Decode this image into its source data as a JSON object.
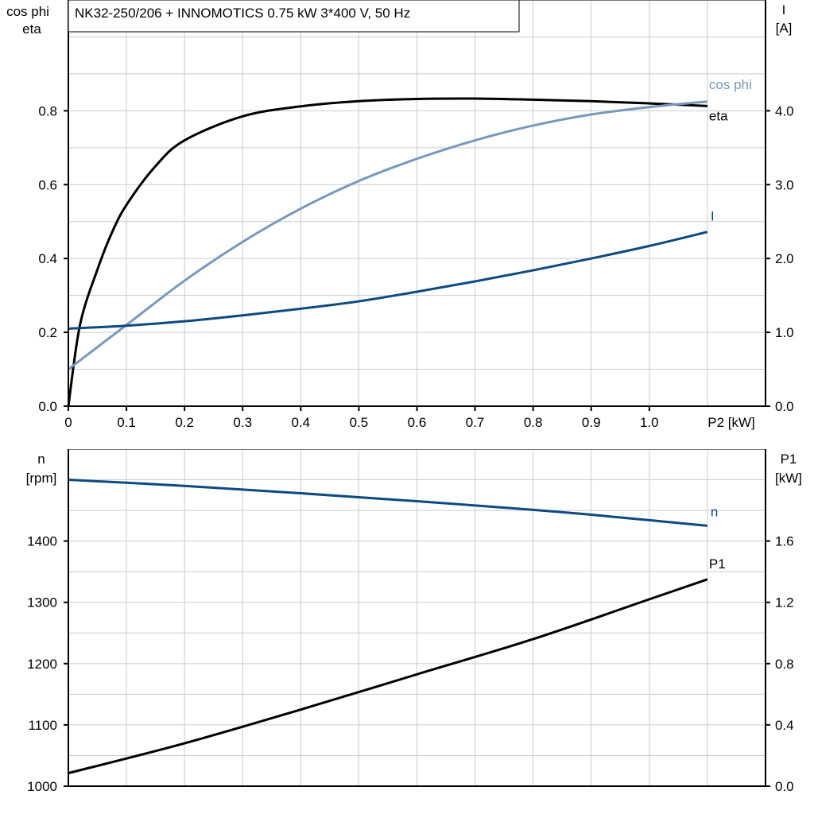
{
  "title": "NK32-250/206 + INNOMOTICS   0.75 kW   3*400 V, 50 Hz",
  "colors": {
    "eta": "#000000",
    "cos_phi": "#7799bb",
    "I": "#0d4a80",
    "n": "#0d4a80",
    "P1": "#000000",
    "grid": "#cccccc"
  },
  "chart_data": [
    {
      "type": "line",
      "xlabel": "P2 [kW]",
      "ylabel_left": [
        "cos phi",
        "eta"
      ],
      "ylabel_right": [
        "I",
        "[A]"
      ],
      "xlim": [
        0,
        1.2
      ],
      "ylim_left": [
        0,
        1.1
      ],
      "ylim_right": [
        0,
        5.5
      ],
      "grid": true,
      "x_ticks": [
        "0",
        "0.1",
        "0.2",
        "0.3",
        "0.4",
        "0.5",
        "0.6",
        "0.7",
        "0.8",
        "0.9",
        "1.0"
      ],
      "y_ticks_left": [
        "0.0",
        "0.2",
        "0.4",
        "0.6",
        "0.8"
      ],
      "y_ticks_right": [
        "0.0",
        "1.0",
        "2.0",
        "3.0",
        "4.0"
      ],
      "series": [
        {
          "name": "eta",
          "axis": "left",
          "x": [
            0,
            0.02,
            0.05,
            0.075,
            0.1,
            0.15,
            0.2,
            0.3,
            0.4,
            0.5,
            0.6,
            0.7,
            0.8,
            0.9,
            1.0,
            1.1
          ],
          "y": [
            0,
            0.22,
            0.37,
            0.47,
            0.545,
            0.65,
            0.72,
            0.785,
            0.812,
            0.826,
            0.832,
            0.833,
            0.83,
            0.826,
            0.82,
            0.813
          ]
        },
        {
          "name": "cos phi",
          "axis": "left",
          "x": [
            0,
            0.1,
            0.2,
            0.3,
            0.4,
            0.5,
            0.6,
            0.7,
            0.8,
            0.9,
            1.0,
            1.1
          ],
          "y": [
            0.1,
            0.22,
            0.34,
            0.445,
            0.535,
            0.61,
            0.67,
            0.72,
            0.76,
            0.79,
            0.81,
            0.825
          ]
        },
        {
          "name": "I",
          "axis": "right",
          "x": [
            0,
            0.1,
            0.2,
            0.3,
            0.4,
            0.5,
            0.6,
            0.7,
            0.8,
            0.9,
            1.0,
            1.1
          ],
          "y": [
            1.05,
            1.09,
            1.15,
            1.23,
            1.32,
            1.42,
            1.55,
            1.69,
            1.84,
            2.0,
            2.17,
            2.36
          ]
        }
      ]
    },
    {
      "type": "line",
      "xlim": [
        0,
        1.2
      ],
      "ylabel_left": [
        "n",
        "[rpm]"
      ],
      "ylabel_right": [
        "P1",
        "[kW]"
      ],
      "ylim_left": [
        1000,
        1550
      ],
      "ylim_right": [
        0,
        2.2
      ],
      "grid": true,
      "y_ticks_left": [
        "1000",
        "1100",
        "1200",
        "1300",
        "1400"
      ],
      "y_ticks_right": [
        "0.0",
        "0.4",
        "0.8",
        "1.2",
        "1.6"
      ],
      "series": [
        {
          "name": "n",
          "axis": "left",
          "x": [
            0,
            0.2,
            0.4,
            0.6,
            0.8,
            0.9,
            1.0,
            1.1
          ],
          "y": [
            1500,
            1490,
            1478,
            1465,
            1451,
            1443,
            1434,
            1425
          ]
        },
        {
          "name": "P1",
          "axis": "right",
          "x": [
            0,
            0.2,
            0.4,
            0.6,
            0.8,
            1.0,
            1.1
          ],
          "y": [
            0.085,
            0.28,
            0.5,
            0.73,
            0.96,
            1.22,
            1.35
          ]
        }
      ]
    }
  ]
}
